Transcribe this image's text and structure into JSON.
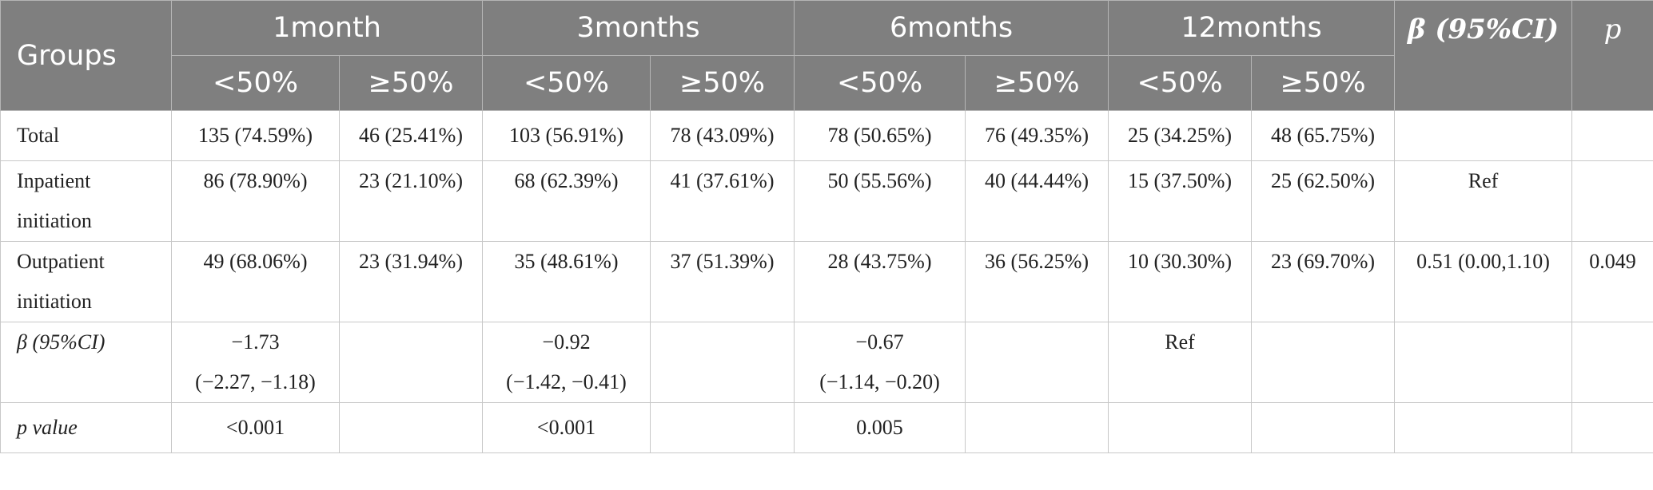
{
  "header": {
    "groups": "Groups",
    "periods": [
      "1month",
      "3months",
      "6months",
      "12months"
    ],
    "beta": "β (95%CI)",
    "p": "p",
    "lt": "<50%",
    "ge": "≥50%"
  },
  "rows": [
    {
      "label": [
        "Total"
      ],
      "cells": [
        "135 (74.59%)",
        "46 (25.41%)",
        "103 (56.91%)",
        "78 (43.09%)",
        "78 (50.65%)",
        "76 (49.35%)",
        "25 (34.25%)",
        "48 (65.75%)"
      ],
      "beta": "",
      "p": ""
    },
    {
      "label": [
        "Inpatient",
        "initiation"
      ],
      "cells": [
        "86 (78.90%)",
        "23 (21.10%)",
        "68 (62.39%)",
        "41 (37.61%)",
        "50 (55.56%)",
        "40 (44.44%)",
        "15 (37.50%)",
        "25 (62.50%)"
      ],
      "beta": "Ref",
      "p": ""
    },
    {
      "label": [
        "Outpatient",
        "initiation"
      ],
      "cells": [
        "49 (68.06%)",
        "23 (31.94%)",
        "35 (48.61%)",
        "37 (51.39%)",
        "28 (43.75%)",
        "36 (56.25%)",
        "10 (30.30%)",
        "23 (69.70%)"
      ],
      "beta": "0.51 (0.00,1.10)",
      "p": "0.049"
    }
  ],
  "beta_row": {
    "label": "β (95%CI)",
    "m1": [
      "−1.73",
      "(−2.27, −1.18)"
    ],
    "m3": [
      "−0.92",
      "(−1.42, −0.41)"
    ],
    "m6": [
      "−0.67",
      "(−1.14, −0.20)"
    ],
    "m12": "Ref"
  },
  "p_row": {
    "label": "p value",
    "m1": "<0.001",
    "m3": "<0.001",
    "m6": "0.005"
  }
}
